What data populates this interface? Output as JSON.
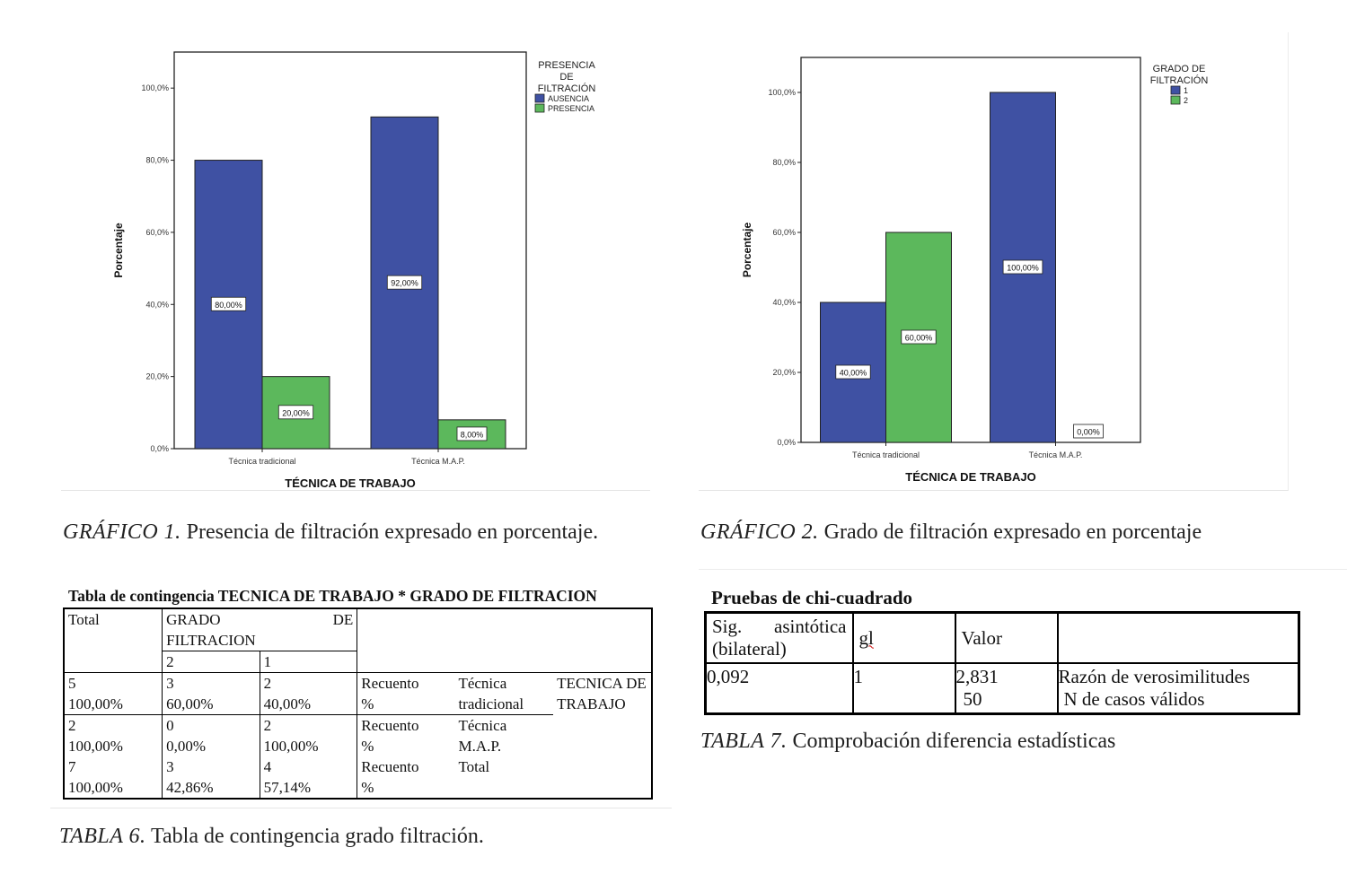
{
  "charts": {
    "chart1": {
      "xlabel": "TÉCNICA DE TRABAJO",
      "ylabel": "Porcentaje",
      "yticks": [
        "0,0%",
        "20,0%",
        "40,0%",
        "60,0%",
        "80,0%",
        "100,0%"
      ],
      "legend_title": [
        "PRESENCIA",
        "DE",
        "FILTRACIÓN"
      ],
      "legend_items": [
        "AUSENCIA",
        "PRESENCIA"
      ],
      "bar_labels": [
        "80,00%",
        "20,00%",
        "92,00%",
        "8,00%"
      ]
    },
    "chart2": {
      "xlabel": "TÉCNICA DE TRABAJO",
      "ylabel": "Porcentaje",
      "yticks": [
        "0,0%",
        "20,0%",
        "40,0%",
        "60,0%",
        "80,0%",
        "100,0%"
      ],
      "legend_title": [
        "GRADO DE",
        "FILTRACIÓN"
      ],
      "legend_items": [
        "1",
        "2"
      ],
      "bar_labels": [
        "40,00%",
        "60,00%",
        "100,00%",
        "0,00%"
      ]
    }
  },
  "chart_data": [
    {
      "type": "bar",
      "categories": [
        "Técnica tradicional",
        "Técnica M.A.P."
      ],
      "series": [
        {
          "name": "AUSENCIA",
          "values": [
            80,
            92
          ]
        },
        {
          "name": "PRESENCIA",
          "values": [
            20,
            8
          ]
        }
      ],
      "xlabel": "TÉCNICA DE TRABAJO",
      "ylabel": "Porcentaje",
      "ylim": [
        0,
        110
      ],
      "colors": [
        "#3f51a3",
        "#5cb85c"
      ],
      "legend": "right"
    },
    {
      "type": "bar",
      "categories": [
        "Técnica tradicional",
        "Técnica M.A.P."
      ],
      "series": [
        {
          "name": "1",
          "values": [
            40,
            100
          ]
        },
        {
          "name": "2",
          "values": [
            60,
            0
          ]
        }
      ],
      "xlabel": "TÉCNICA DE TRABAJO",
      "ylabel": "Porcentaje",
      "ylim": [
        0,
        110
      ],
      "colors": [
        "#3f51a3",
        "#5cb85c"
      ],
      "legend": "right"
    }
  ],
  "captions": {
    "graf1_lead": "GRÁFICO 1.",
    "graf1_text": "Presencia de filtración expresado en porcentaje.",
    "graf2_lead": "GRÁFICO 2.",
    "graf2_text": "Grado de filtración expresado en porcentaje",
    "tabla6_lead": "TABLA 6.",
    "tabla6_text": "Tabla de contingencia grado filtración.",
    "tabla7_lead": "TABLA 7.",
    "tabla7_text": "Comprobación diferencia estadísticas"
  },
  "table6": {
    "title": "Tabla de contingencia TECNICA DE TRABAJO * GRADO DE FILTRACION",
    "header_total": "Total",
    "header_grado_a": "GRADO",
    "header_grado_b": "DE",
    "header_filtracion": "FILTRACION",
    "header_col2": "2",
    "header_col1": "1",
    "tecnica": "TECNICA DE TRABAJO",
    "rows": [
      {
        "total": [
          "5",
          "100,00%"
        ],
        "g2": [
          "3",
          "60,00%"
        ],
        "g1": [
          "2",
          "40,00%"
        ],
        "stat": [
          "Recuento",
          "%"
        ],
        "label": [
          "Técnica",
          "tradicional"
        ]
      },
      {
        "total": [
          "2",
          "100,00%"
        ],
        "g2": [
          "0",
          "0,00%"
        ],
        "g1": [
          "2",
          "100,00%"
        ],
        "stat": [
          "Recuento",
          "%"
        ],
        "label": [
          "Técnica",
          "M.A.P."
        ]
      },
      {
        "total": [
          "7",
          "100,00%"
        ],
        "g2": [
          "3",
          "42,86%"
        ],
        "g1": [
          "4",
          "57,14%"
        ],
        "stat": [
          "Recuento",
          "%"
        ],
        "label": [
          "Total",
          ""
        ]
      }
    ]
  },
  "table7": {
    "title": "Pruebas de chi-cuadrado",
    "header_sig": "Sig. asintótica (bilateral)",
    "header_gl": "gl",
    "header_valor": "Valor",
    "sig": "0,092",
    "gl": "1",
    "valor_1": "2,831",
    "valor_2": "50",
    "label_1": "Razón de verosimilitudes",
    "label_2": "N de casos válidos"
  }
}
